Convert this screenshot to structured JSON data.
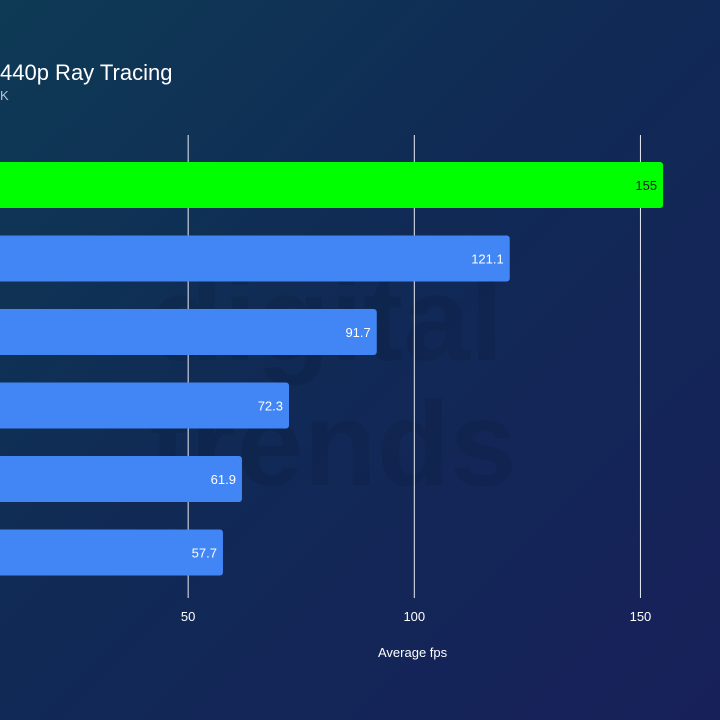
{
  "chart_data": {
    "type": "bar",
    "orientation": "horizontal",
    "title": "440p Ray Tracing",
    "subtitle": "K",
    "xlabel": "Average fps",
    "xlim": [
      0,
      155
    ],
    "xticks": [
      50,
      100,
      150
    ],
    "grid": true,
    "categories": [
      "",
      "",
      "",
      "",
      "",
      ""
    ],
    "values": [
      155,
      121.1,
      91.7,
      72.3,
      61.9,
      57.7
    ],
    "value_labels": [
      "155",
      "121.1",
      "91.7",
      "72.3",
      "61.9",
      "57.7"
    ],
    "bar_colors": [
      "#00ff00",
      "#4285f4",
      "#4285f4",
      "#4285f4",
      "#4285f4",
      "#4285f4"
    ]
  },
  "watermark": {
    "line1": "digital",
    "line2": "trends"
  }
}
